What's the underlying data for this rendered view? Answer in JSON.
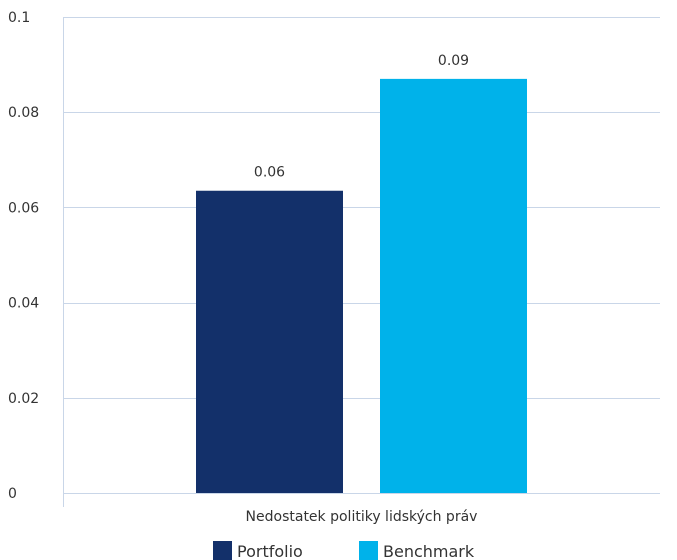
{
  "chart_data": {
    "type": "bar",
    "categories": [
      "Nedostatek politiky lidských práv"
    ],
    "series": [
      {
        "name": "Portfolio",
        "values": [
          0.0635
        ],
        "label": "0.06",
        "color": "#13306A"
      },
      {
        "name": "Benchmark",
        "values": [
          0.087
        ],
        "label": "0.09",
        "color": "#00B2EA"
      }
    ],
    "ylim": [
      0,
      0.1
    ],
    "yticks": [
      "0",
      "0.02",
      "0.04",
      "0.06",
      "0.08",
      "0.1"
    ],
    "grid": true,
    "legend_position": "bottom"
  }
}
